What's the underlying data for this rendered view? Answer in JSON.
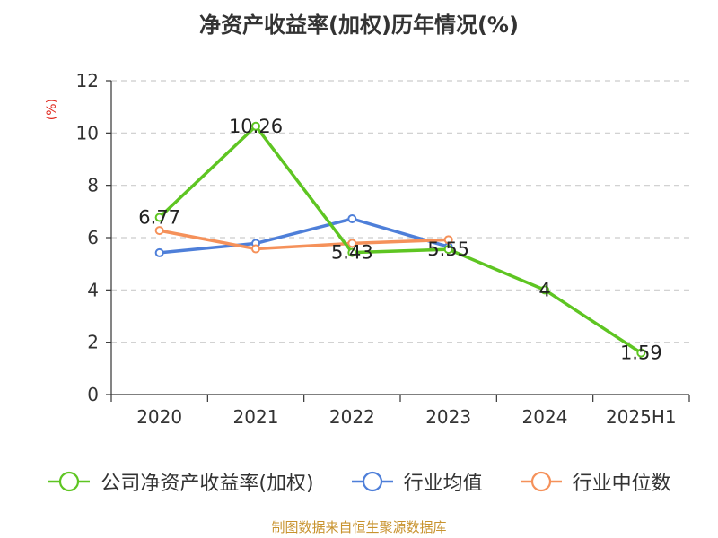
{
  "chart_data": {
    "type": "line",
    "title": "净资产收益率(加权)历年情况(%)",
    "ylabel": "(%)",
    "xlabel": "",
    "categories": [
      "2020",
      "2021",
      "2022",
      "2023",
      "2024",
      "2025H1"
    ],
    "ylim": [
      0,
      12
    ],
    "yticks": [
      "0",
      "2",
      "4",
      "6",
      "8",
      "10",
      "12"
    ],
    "grid": true,
    "legend_position": "bottom",
    "series": [
      {
        "name": "公司净资产收益率(加权)",
        "color": "#5ec522",
        "values": [
          6.77,
          10.26,
          5.43,
          5.55,
          4,
          1.59
        ],
        "labels": [
          "6.77",
          "10.26",
          "5.43",
          "5.55",
          "4",
          "1.59"
        ]
      },
      {
        "name": "行业均值",
        "color": "#4e7fd9",
        "values": [
          5.42,
          5.78,
          6.72,
          5.65,
          null,
          null
        ]
      },
      {
        "name": "行业中位数",
        "color": "#f5915a",
        "values": [
          6.27,
          5.57,
          5.78,
          5.92,
          null,
          null
        ]
      }
    ]
  },
  "source_text": "制图数据来自恒生聚源数据库"
}
